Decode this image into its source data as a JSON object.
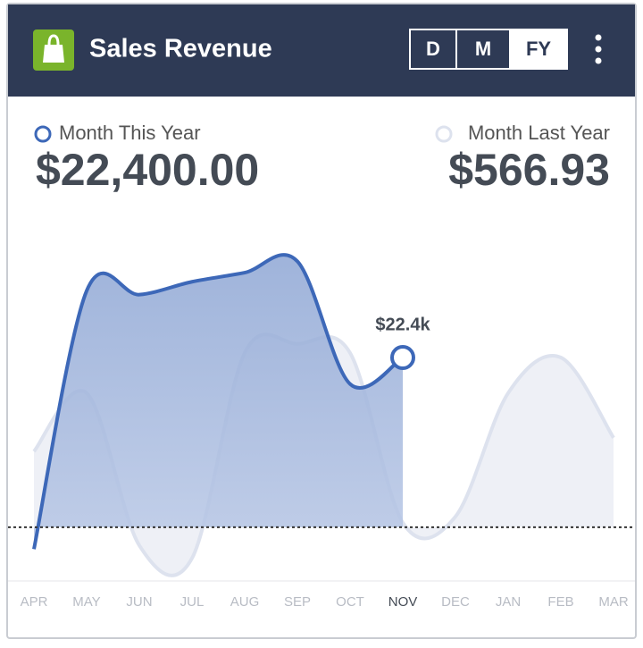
{
  "header": {
    "title": "Sales Revenue",
    "buttons": [
      "D",
      "M",
      "FY"
    ],
    "selected_button": 2
  },
  "summary": {
    "current_label": "Month This Year",
    "current_value": "$22,400.00",
    "previous_label": "Month Last Year",
    "previous_value": "$566.93"
  },
  "chart_data": {
    "type": "line",
    "categories": [
      "APR",
      "MAY",
      "JUN",
      "JUL",
      "AUG",
      "SEP",
      "OCT",
      "NOV",
      "DEC",
      "JAN",
      "FEB",
      "MAR"
    ],
    "series": [
      {
        "name": "Month This Year",
        "color": "#3d68b8",
        "values": [
          -2.9,
          31.2,
          30.7,
          32.4,
          33.6,
          35.1,
          18.9,
          22.4,
          null,
          null,
          null,
          null
        ],
        "value_labels": [
          null,
          null,
          null,
          null,
          null,
          null,
          null,
          "$22.4k",
          null,
          null,
          null,
          null
        ]
      },
      {
        "name": "Month Last Year",
        "color": "#dde2ee",
        "values": [
          10.0,
          17.7,
          -2.4,
          -4.1,
          23.0,
          24.2,
          23.0,
          0.6,
          1.4,
          17.7,
          22.4,
          11.8
        ]
      }
    ],
    "ylim": [
      -7.1,
      40.1
    ]
  }
}
